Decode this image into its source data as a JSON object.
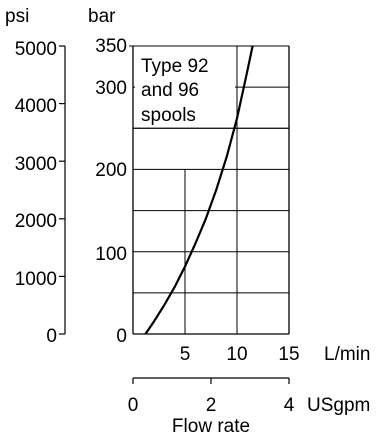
{
  "chart_data": {
    "type": "line",
    "title": "",
    "xlabel": "Flow rate",
    "x_unit": "L/min",
    "x_range": [
      0,
      15
    ],
    "x_ticks": [
      0,
      5,
      10,
      15
    ],
    "x2_unit": "USgpm",
    "x2_range": [
      0,
      4
    ],
    "x2_ticks": [
      0,
      2,
      4
    ],
    "y_unit": "bar",
    "y_range": [
      0,
      350
    ],
    "y_tick_labels": [
      "0",
      "100",
      "200",
      "300",
      "350"
    ],
    "y2_unit": "psi",
    "y2_range": [
      0,
      5000
    ],
    "y2_ticks": [
      "0",
      "1000",
      "2000",
      "3000",
      "4000",
      "5000"
    ],
    "grid": true,
    "annotation_lines": [
      "Type 92",
      "and 96",
      "spools"
    ],
    "series": [
      {
        "x": [
          1.2,
          2.0,
          3.0,
          4.0,
          5.0,
          6.0,
          7.0,
          8.0,
          9.0,
          10.0,
          11.0,
          11.5
        ],
        "y": [
          0,
          15,
          35,
          57,
          82,
          110,
          140,
          175,
          215,
          262,
          320,
          350
        ]
      }
    ]
  }
}
